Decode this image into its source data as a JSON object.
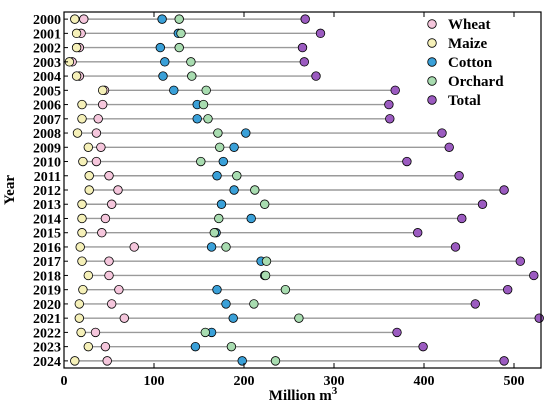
{
  "chart_data": {
    "type": "scatter",
    "title": "",
    "xlabel": "Million m",
    "xlabel_superscript": "3",
    "ylabel": "Year",
    "xlim": [
      0,
      530
    ],
    "xticks": [
      0,
      100,
      200,
      300,
      400,
      500
    ],
    "categories": [
      "2000",
      "2001",
      "2002",
      "2003",
      "2004",
      "2005",
      "2006",
      "2007",
      "2008",
      "2009",
      "2010",
      "2011",
      "2012",
      "2013",
      "2014",
      "2015",
      "2016",
      "2017",
      "2018",
      "2019",
      "2020",
      "2021",
      "2022",
      "2023",
      "2024"
    ],
    "legend_position": "top-right",
    "grid": false,
    "series": [
      {
        "name": "Wheat",
        "color": "#f5c6dc",
        "values": [
          22,
          19,
          17,
          9,
          17,
          45,
          43,
          38,
          36,
          41,
          36,
          50,
          60,
          53,
          46,
          42,
          78,
          50,
          50,
          61,
          53,
          67,
          35,
          46,
          48
        ]
      },
      {
        "name": "Maize",
        "color": "#f5f0b8",
        "values": [
          12,
          14,
          14,
          6,
          14,
          43,
          20,
          20,
          15,
          27,
          21,
          28,
          28,
          20,
          20,
          20,
          18,
          20,
          27,
          21,
          17,
          17,
          19,
          27,
          12
        ]
      },
      {
        "name": "Cotton",
        "color": "#3aa0d8",
        "values": [
          109,
          127,
          107,
          112,
          110,
          122,
          148,
          148,
          202,
          189,
          177,
          170,
          189,
          175,
          208,
          169,
          164,
          219,
          223,
          170,
          180,
          188,
          164,
          146,
          198
        ]
      },
      {
        "name": "Orchard",
        "color": "#a8dcb0",
        "values": [
          128,
          130,
          128,
          141,
          142,
          158,
          155,
          160,
          171,
          173,
          152,
          192,
          212,
          223,
          172,
          167,
          180,
          225,
          224,
          246,
          211,
          261,
          157,
          186,
          235
        ]
      },
      {
        "name": "Total",
        "color": "#9b5bc0",
        "values": [
          268,
          285,
          265,
          267,
          280,
          368,
          361,
          362,
          420,
          428,
          381,
          439,
          489,
          465,
          442,
          393,
          435,
          507,
          522,
          493,
          457,
          528,
          370,
          399,
          489
        ]
      }
    ]
  }
}
